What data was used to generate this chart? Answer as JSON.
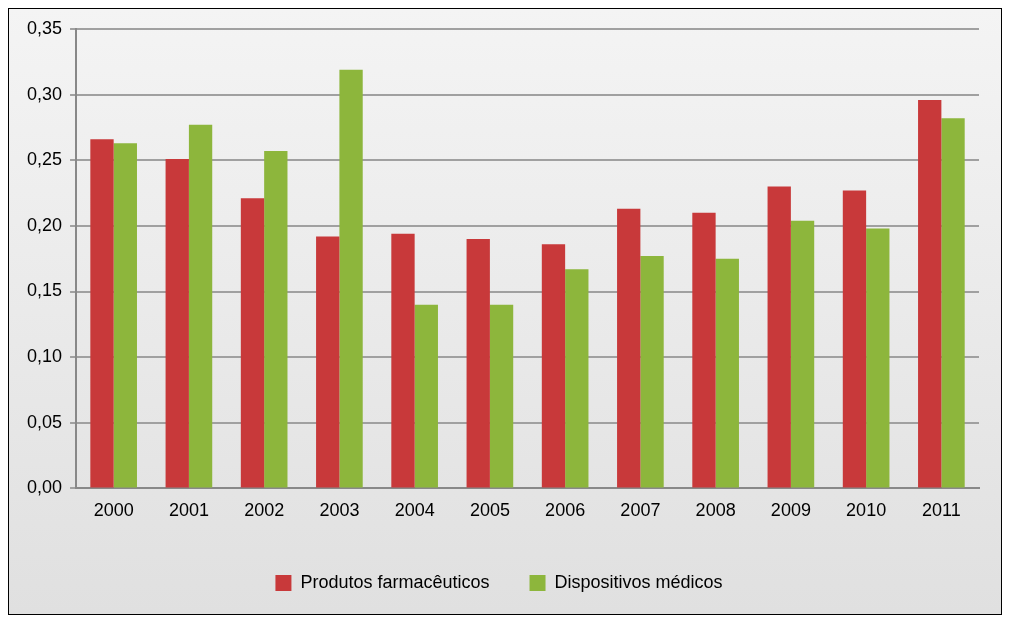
{
  "chart_data": {
    "type": "bar",
    "categories": [
      "2000",
      "2001",
      "2002",
      "2003",
      "2004",
      "2005",
      "2006",
      "2007",
      "2008",
      "2009",
      "2010",
      "2011"
    ],
    "series": [
      {
        "name": "Produtos farmacêuticos",
        "color": "#c8393a",
        "values": [
          0.266,
          0.251,
          0.221,
          0.192,
          0.194,
          0.19,
          0.186,
          0.213,
          0.21,
          0.23,
          0.227,
          0.296
        ]
      },
      {
        "name": "Dispositivos médicos",
        "color": "#8db63c",
        "values": [
          0.263,
          0.277,
          0.257,
          0.319,
          0.14,
          0.14,
          0.167,
          0.177,
          0.175,
          0.204,
          0.198,
          0.282
        ]
      }
    ],
    "ylim": [
      0,
      0.35
    ],
    "yticks": [
      {
        "value": 0,
        "label": "0,00"
      },
      {
        "value": 0.05,
        "label": "0,05"
      },
      {
        "value": 0.1,
        "label": "0,10"
      },
      {
        "value": 0.15,
        "label": "0,15"
      },
      {
        "value": 0.2,
        "label": "0,20"
      },
      {
        "value": 0.25,
        "label": "0,25"
      },
      {
        "value": 0.3,
        "label": "0,30"
      },
      {
        "value": 0.35,
        "label": "0,35"
      }
    ],
    "grid": "y",
    "legend": "bottom"
  }
}
